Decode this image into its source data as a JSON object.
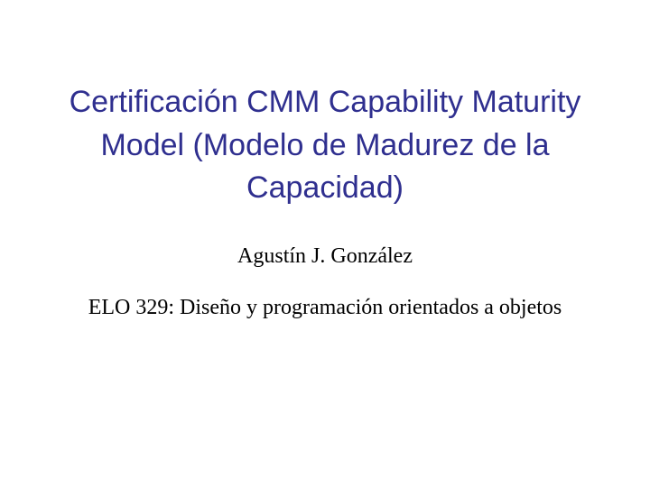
{
  "slide": {
    "title": "Certificación CMM Capability Maturity Model (Modelo de Madurez de la Capacidad)",
    "author": "Agustín J. González",
    "course": "ELO 329: Diseño y programación orientados a objetos"
  },
  "styles": {
    "title_color": "#2f2f8f",
    "title_fontsize": 34,
    "title_fontfamily": "Arial",
    "body_color": "#000000",
    "author_fontsize": 24,
    "course_fontsize": 24,
    "body_fontfamily": "Georgia",
    "background_color": "#ffffff",
    "slide_width": 720,
    "slide_height": 540
  }
}
